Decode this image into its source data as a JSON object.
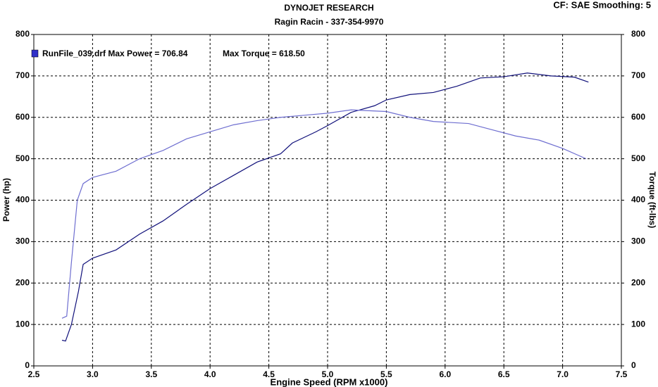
{
  "chart_data": {
    "type": "line",
    "title": "DYNOJET RESEARCH",
    "subtitle": "Ragin Racin - 337-354-9970",
    "corner_note": "CF: SAE  Smoothing: 5",
    "legend": [
      "RunFile_039.drf Max Power = 706.84",
      "Max Torque = 618.50"
    ],
    "legend_color": "#3030c8",
    "xlabel": "Engine Speed (RPM x1000)",
    "ylabel": "Power (hp)",
    "y2label": "Torque (ft-lbs)",
    "xlim": [
      2.5,
      7.5
    ],
    "xticks": [
      2.5,
      {
        "value": 3,
        "label": "3.0"
      },
      3.5,
      {
        "value": 4,
        "label": "4.0"
      },
      4.5,
      {
        "value": 5,
        "label": "5.0"
      },
      5.5,
      {
        "value": 6,
        "label": "6.0"
      },
      6.5,
      {
        "value": 7,
        "label": "7.0"
      },
      7.5
    ],
    "ylim": [
      0,
      800
    ],
    "yticks": [
      0,
      100,
      200,
      300,
      400,
      500,
      600,
      700,
      800
    ],
    "y2lim": [
      0,
      800
    ],
    "y2ticks": [
      0,
      100,
      200,
      300,
      400,
      500,
      600,
      700,
      800
    ],
    "grid": true,
    "series": [
      {
        "color": "#10107a",
        "x": [
          2.74,
          2.77,
          2.82,
          2.88,
          2.92,
          3.0,
          3.2,
          3.4,
          3.6,
          3.8,
          4.0,
          4.2,
          4.4,
          4.6,
          4.7,
          4.9,
          5.0,
          5.2,
          5.4,
          5.5,
          5.7,
          5.9,
          6.1,
          6.3,
          6.5,
          6.7,
          6.9,
          7.1,
          7.22
        ],
        "values": [
          62,
          60,
          100,
          180,
          245,
          260,
          280,
          318,
          350,
          390,
          428,
          460,
          492,
          512,
          538,
          565,
          580,
          612,
          628,
          642,
          655,
          660,
          675,
          695,
          698,
          707,
          700,
          697,
          685
        ]
      },
      {
        "color": "#6e6ed0",
        "axis": "y2",
        "x": [
          2.74,
          2.78,
          2.82,
          2.87,
          2.92,
          3.0,
          3.2,
          3.4,
          3.6,
          3.8,
          4.0,
          4.2,
          4.4,
          4.6,
          4.8,
          5.0,
          5.2,
          5.5,
          5.7,
          5.9,
          6.2,
          6.4,
          6.6,
          6.8,
          7.0,
          7.2
        ],
        "values": [
          115,
          120,
          250,
          400,
          440,
          455,
          470,
          500,
          520,
          548,
          565,
          582,
          592,
          600,
          605,
          610,
          618,
          614,
          600,
          590,
          585,
          570,
          555,
          545,
          525,
          500
        ]
      }
    ]
  }
}
